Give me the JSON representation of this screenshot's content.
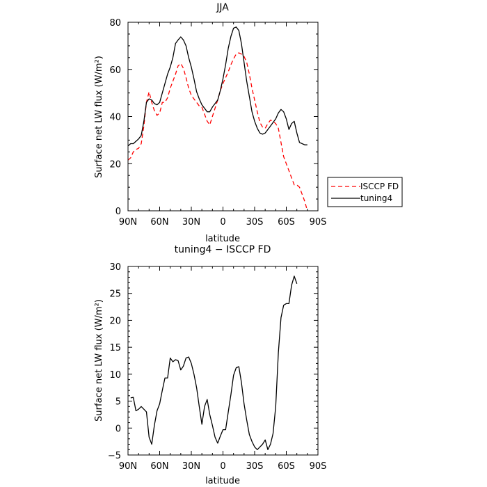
{
  "chart_data": [
    {
      "type": "line",
      "title": "JJA",
      "xlabel": "latitude",
      "ylabel": "Surface net LW flux (W/m²)",
      "xlim": [
        90,
        -90
      ],
      "ylim": [
        0,
        80
      ],
      "x_ticks": [
        90,
        60,
        30,
        0,
        -30,
        -60,
        -90
      ],
      "x_tick_labels": [
        "90N",
        "60N",
        "30N",
        "0",
        "30S",
        "60S",
        "90S"
      ],
      "y_ticks": [
        0,
        20,
        40,
        60,
        80
      ],
      "y_tick_labels": [
        "0",
        "20",
        "40",
        "60",
        "80"
      ],
      "legend": "outside-right",
      "series": [
        {
          "name": "ISCCP FD",
          "color": "#ff0000",
          "dash": "dashed",
          "points": [
            [
              90,
              21.5
            ],
            [
              87.5,
              22.5
            ],
            [
              85,
              25
            ],
            [
              82.5,
              26
            ],
            [
              80,
              26.5
            ],
            [
              77.5,
              28.5
            ],
            [
              75,
              36
            ],
            [
              72.5,
              46
            ],
            [
              70,
              50.5
            ],
            [
              67.5,
              46
            ],
            [
              65,
              42.5
            ],
            [
              62.5,
              40.5
            ],
            [
              60,
              41.5
            ],
            [
              57.5,
              46
            ],
            [
              55,
              46
            ],
            [
              52.5,
              48
            ],
            [
              50,
              52
            ],
            [
              47.5,
              55
            ],
            [
              45,
              58
            ],
            [
              42.5,
              61.5
            ],
            [
              40,
              62.5
            ],
            [
              37.5,
              60.5
            ],
            [
              35,
              56.5
            ],
            [
              32.5,
              52
            ],
            [
              30,
              49
            ],
            [
              27.5,
              47.5
            ],
            [
              25,
              46
            ],
            [
              22.5,
              44.5
            ],
            [
              20,
              44
            ],
            [
              17.5,
              41
            ],
            [
              15,
              38
            ],
            [
              12.5,
              36.5
            ],
            [
              10,
              40
            ],
            [
              7.5,
              43.5
            ],
            [
              5,
              47
            ],
            [
              2.5,
              51
            ],
            [
              0,
              54
            ],
            [
              -2.5,
              56.5
            ],
            [
              -5,
              59
            ],
            [
              -7.5,
              62
            ],
            [
              -10,
              64.5
            ],
            [
              -12.5,
              66.5
            ],
            [
              -15,
              67
            ],
            [
              -17.5,
              66.5
            ],
            [
              -20,
              65.5
            ],
            [
              -22.5,
              63
            ],
            [
              -25,
              58
            ],
            [
              -27.5,
              52
            ],
            [
              -30,
              47
            ],
            [
              -32.5,
              42
            ],
            [
              -35,
              37.5
            ],
            [
              -37.5,
              35.5
            ],
            [
              -40,
              35
            ],
            [
              -42.5,
              37
            ],
            [
              -45,
              38.5
            ],
            [
              -47.5,
              38
            ],
            [
              -50,
              37
            ],
            [
              -52.5,
              35
            ],
            [
              -55,
              29
            ],
            [
              -57.5,
              23
            ],
            [
              -60,
              20
            ],
            [
              -62.5,
              17
            ],
            [
              -65,
              14
            ],
            [
              -67.5,
              11
            ],
            [
              -70,
              11
            ],
            [
              -72.5,
              10
            ],
            [
              -75,
              7
            ],
            [
              -77.5,
              4
            ],
            [
              -80,
              0
            ]
          ]
        },
        {
          "name": "tuning4",
          "color": "#000000",
          "dash": "solid",
          "points": [
            [
              90,
              27.5
            ],
            [
              87.5,
              28.5
            ],
            [
              85,
              28.5
            ],
            [
              82.5,
              29.5
            ],
            [
              80,
              30.5
            ],
            [
              77.5,
              32
            ],
            [
              75,
              38
            ],
            [
              72.5,
              46
            ],
            [
              70,
              47.5
            ],
            [
              67.5,
              47
            ],
            [
              65,
              45.5
            ],
            [
              62.5,
              45
            ],
            [
              60,
              46
            ],
            [
              57.5,
              50
            ],
            [
              55,
              54
            ],
            [
              52.5,
              58
            ],
            [
              50,
              61
            ],
            [
              47.5,
              65
            ],
            [
              45,
              71
            ],
            [
              42.5,
              72.5
            ],
            [
              40,
              73.8
            ],
            [
              37.5,
              72.5
            ],
            [
              35,
              70
            ],
            [
              32.5,
              65
            ],
            [
              30,
              61
            ],
            [
              27.5,
              56
            ],
            [
              25,
              50.5
            ],
            [
              22.5,
              47.5
            ],
            [
              20,
              45
            ],
            [
              17.5,
              43.5
            ],
            [
              15,
              42
            ],
            [
              12.5,
              42
            ],
            [
              10,
              44
            ],
            [
              7.5,
              45.5
            ],
            [
              5,
              47
            ],
            [
              2.5,
              51
            ],
            [
              0,
              56
            ],
            [
              -2.5,
              62
            ],
            [
              -5,
              69
            ],
            [
              -7.5,
              74
            ],
            [
              -10,
              77.5
            ],
            [
              -12.5,
              78
            ],
            [
              -15,
              76.5
            ],
            [
              -17.5,
              71
            ],
            [
              -20,
              63
            ],
            [
              -22.5,
              55
            ],
            [
              -25,
              48.5
            ],
            [
              -27.5,
              42
            ],
            [
              -30,
              38
            ],
            [
              -32.5,
              35
            ],
            [
              -35,
              33
            ],
            [
              -37.5,
              32.5
            ],
            [
              -40,
              33
            ],
            [
              -42.5,
              34.5
            ],
            [
              -45,
              36
            ],
            [
              -47.5,
              37.5
            ],
            [
              -50,
              39
            ],
            [
              -52.5,
              41.5
            ],
            [
              -55,
              43
            ],
            [
              -57.5,
              42
            ],
            [
              -60,
              39
            ],
            [
              -62.5,
              34.5
            ],
            [
              -65,
              37
            ],
            [
              -67.5,
              38
            ],
            [
              -70,
              33
            ],
            [
              -72.5,
              29
            ],
            [
              -75,
              28.5
            ],
            [
              -77.5,
              28
            ],
            [
              -80,
              28
            ]
          ]
        }
      ]
    },
    {
      "type": "line",
      "title": "tuning4 − ISCCP FD",
      "xlabel": "latitude",
      "ylabel": "Surface net LW flux (W/m²)",
      "xlim": [
        90,
        -90
      ],
      "ylim": [
        -5,
        30
      ],
      "x_ticks": [
        90,
        60,
        30,
        0,
        -30,
        -60,
        -90
      ],
      "x_tick_labels": [
        "90N",
        "60N",
        "30N",
        "0",
        "30S",
        "60S",
        "90S"
      ],
      "y_ticks": [
        -5,
        0,
        5,
        10,
        15,
        20,
        25,
        30
      ],
      "y_tick_labels": [
        "−5",
        "0",
        "5",
        "10",
        "15",
        "20",
        "25",
        "30"
      ],
      "series": [
        {
          "color": "#000000",
          "dash": "solid",
          "points": [
            [
              87.5,
              5.6
            ],
            [
              85,
              5.7
            ],
            [
              82.5,
              3.2
            ],
            [
              80,
              3.5
            ],
            [
              77.5,
              4.0
            ],
            [
              75,
              3.5
            ],
            [
              72.5,
              3.0
            ],
            [
              70,
              -1.7
            ],
            [
              67.5,
              -3.0
            ],
            [
              65,
              0.5
            ],
            [
              62.5,
              3.2
            ],
            [
              60,
              4.5
            ],
            [
              57.5,
              7.0
            ],
            [
              55,
              9.3
            ],
            [
              52.5,
              9.3
            ],
            [
              50,
              13.0
            ],
            [
              47.5,
              12.3
            ],
            [
              45,
              12.7
            ],
            [
              42.5,
              12.5
            ],
            [
              40,
              10.8
            ],
            [
              37.5,
              11.5
            ],
            [
              35,
              13.0
            ],
            [
              32.5,
              13.2
            ],
            [
              30,
              12.0
            ],
            [
              27.5,
              10.0
            ],
            [
              25,
              7.5
            ],
            [
              22.5,
              4.0
            ],
            [
              20,
              0.7
            ],
            [
              17.5,
              4.0
            ],
            [
              15,
              5.3
            ],
            [
              12.5,
              2.5
            ],
            [
              10,
              0.5
            ],
            [
              7.5,
              -1.7
            ],
            [
              5,
              -2.8
            ],
            [
              2.5,
              -1.5
            ],
            [
              0,
              -0.3
            ],
            [
              -2.5,
              -0.3
            ],
            [
              -5,
              3.0
            ],
            [
              -7.5,
              6.2
            ],
            [
              -10,
              9.8
            ],
            [
              -12.5,
              11.2
            ],
            [
              -15,
              11.4
            ],
            [
              -17.5,
              8.5
            ],
            [
              -20,
              4.5
            ],
            [
              -22.5,
              1.5
            ],
            [
              -25,
              -1.2
            ],
            [
              -27.5,
              -2.5
            ],
            [
              -30,
              -3.5
            ],
            [
              -32.5,
              -4.0
            ],
            [
              -35,
              -3.5
            ],
            [
              -37.5,
              -3.0
            ],
            [
              -40,
              -2.2
            ],
            [
              -42.5,
              -4.0
            ],
            [
              -45,
              -3.0
            ],
            [
              -47.5,
              -1.0
            ],
            [
              -50,
              4.0
            ],
            [
              -52.5,
              14.0
            ],
            [
              -55,
              20.5
            ],
            [
              -57.5,
              22.8
            ],
            [
              -60,
              23.1
            ],
            [
              -62.5,
              23.1
            ],
            [
              -65,
              26.5
            ],
            [
              -67.5,
              28.2
            ],
            [
              -70,
              26.8
            ]
          ]
        }
      ]
    }
  ]
}
